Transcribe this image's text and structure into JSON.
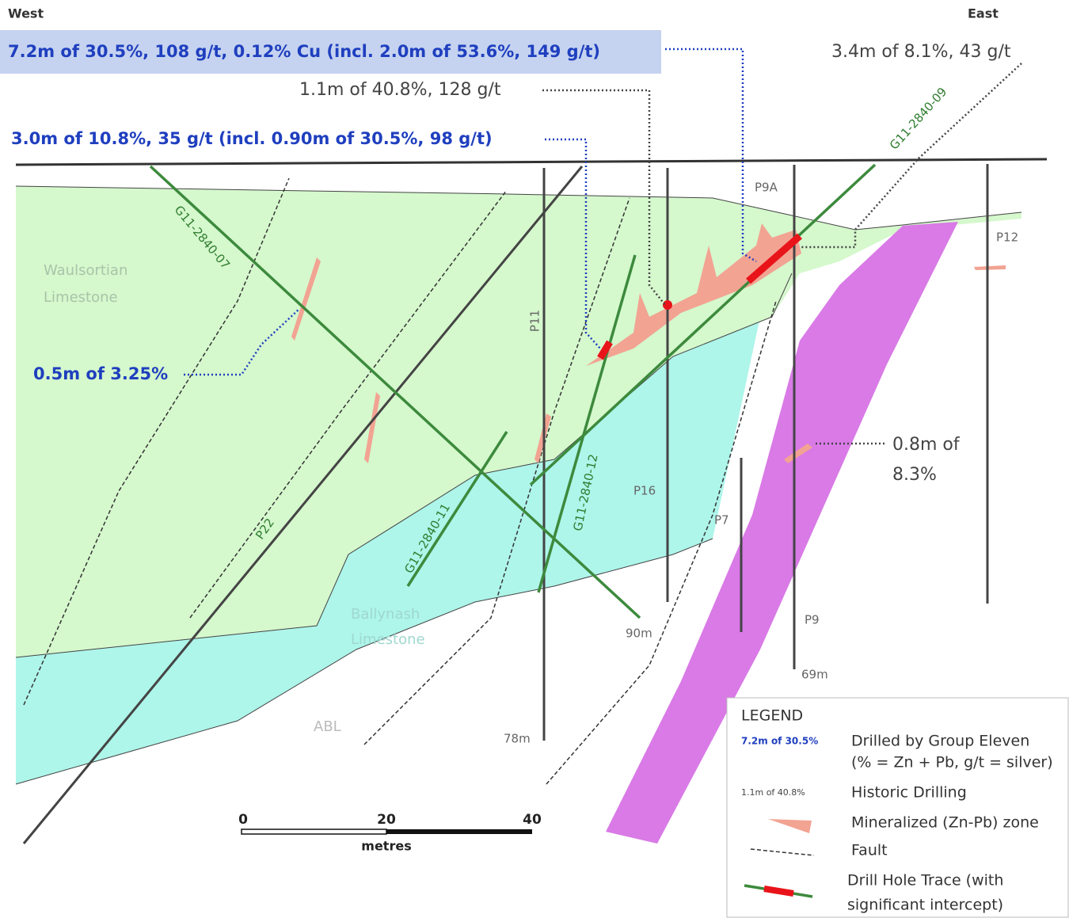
{
  "header": {
    "west": "West",
    "east": "East"
  },
  "intercepts": {
    "main": "7.2m of 30.5%, 108 g/t, 0.12% Cu (incl. 2.0m of 53.6%, 149 g/t)",
    "east": "3.4m of 8.1%, 43 g/t",
    "historic": "1.1m of 40.8%, 128 g/t",
    "second": "3.0m of 10.8%, 35 g/t (incl. 0.90m of 30.5%, 98 g/t)",
    "third": "0.5m of 3.25%",
    "dyke": [
      "0.8m of",
      "8.3%"
    ]
  },
  "drill_holes": [
    "G11-2840-07",
    "G11-2840-09",
    "G11-2840-11",
    "G11-2840-12",
    "P22",
    "P11",
    "P16",
    "P7",
    "P9A",
    "P9",
    "P12"
  ],
  "depths": [
    "90m",
    "69m",
    "78m"
  ],
  "units": {
    "waulsortian": [
      "Waulsortian",
      "Limestone"
    ],
    "ballynash": [
      "Ballynash",
      "Limestone"
    ],
    "abl": "ABL"
  },
  "scale": {
    "ticks": [
      "0",
      "20",
      "40"
    ],
    "label": "metres"
  },
  "legend": {
    "title": "LEGEND",
    "items": [
      {
        "sample": "7.2m of 30.5%",
        "label": "Drilled by Group Eleven",
        "note": "(% = Zn + Pb, g/t = silver)"
      },
      {
        "sample": "1.1m of 40.8%",
        "label": "Historic Drilling"
      },
      {
        "label": "Mineralized (Zn-Pb) zone"
      },
      {
        "label": "Fault"
      },
      {
        "label": "Drill Hole Trace (with",
        "note": "significant intercept)"
      }
    ]
  }
}
